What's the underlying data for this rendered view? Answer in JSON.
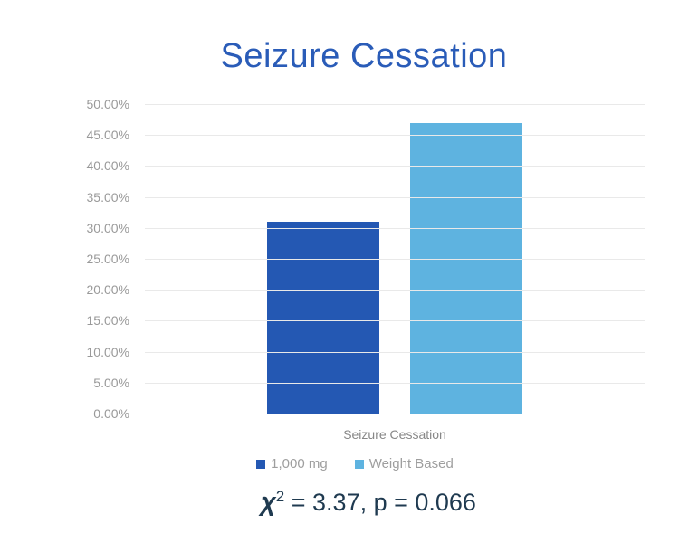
{
  "title": {
    "text": "Seizure Cessation",
    "color": "#2a5cb8"
  },
  "chart_data": {
    "type": "bar",
    "title": "Seizure Cessation",
    "categories": [
      "Seizure Cessation"
    ],
    "series": [
      {
        "name": "1,000 mg",
        "value": 31,
        "color": "#2458b3"
      },
      {
        "name": "Weight Based",
        "value": 47,
        "color": "#5eb3e0"
      }
    ],
    "ylim": [
      0,
      50
    ],
    "y_tick_labels_top_to_bottom": [
      "50.00%",
      "45.00%",
      "40.00%",
      "35.00%",
      "30.00%",
      "25.00%",
      "20.00%",
      "15.00%",
      "10.00%",
      "5.00%",
      "0.00%"
    ],
    "grid": true,
    "legend_position": "bottom",
    "tick_color": "#999999",
    "category_label_color": "#878787"
  },
  "annotation": {
    "chi_symbol": "χ",
    "exponent": "2",
    "rest": " = 3.37, p = 0.066",
    "color": "#1f3a50"
  }
}
